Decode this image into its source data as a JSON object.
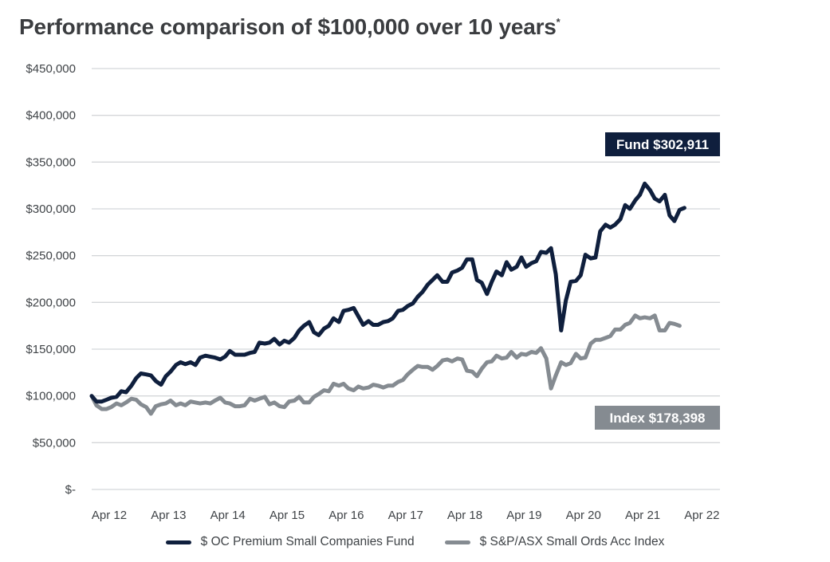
{
  "chart_data": {
    "type": "line",
    "title": "Performance comparison of $100,000 over 10 years",
    "title_marker": "*",
    "ylabel": "",
    "xlabel": "",
    "ylim": [
      0,
      450000
    ],
    "grid": true,
    "legend_position": "bottom",
    "y_ticks": [
      {
        "value": 450000,
        "label": "$450,000"
      },
      {
        "value": 400000,
        "label": "$400,000"
      },
      {
        "value": 350000,
        "label": "$350,000"
      },
      {
        "value": 300000,
        "label": "$300,000"
      },
      {
        "value": 250000,
        "label": "$250,000"
      },
      {
        "value": 200000,
        "label": "$200,000"
      },
      {
        "value": 150000,
        "label": "$150,000"
      },
      {
        "value": 100000,
        "label": "$100,000"
      },
      {
        "value": 50000,
        "label": "$50,000"
      },
      {
        "value": 0,
        "label": "$-"
      }
    ],
    "x_ticks": [
      "Apr 12",
      "Apr 13",
      "Apr 14",
      "Apr 15",
      "Apr 16",
      "Apr 17",
      "Apr 18",
      "Apr 19",
      "Apr 20",
      "Apr 21",
      "Apr 22"
    ],
    "x_range": [
      2012.0,
      2022.6
    ],
    "series": [
      {
        "name": "$ OC Premium Small Companies Fund",
        "color": "#0f1f3d",
        "callout": "Fund $302,911",
        "points": [
          [
            2012.0,
            100000
          ],
          [
            2012.08,
            94000
          ],
          [
            2012.17,
            94000
          ],
          [
            2012.25,
            96000
          ],
          [
            2012.33,
            98000
          ],
          [
            2012.42,
            99000
          ],
          [
            2012.5,
            105000
          ],
          [
            2012.58,
            104000
          ],
          [
            2012.67,
            111000
          ],
          [
            2012.75,
            119000
          ],
          [
            2012.83,
            124000
          ],
          [
            2012.92,
            123000
          ],
          [
            2013.0,
            122000
          ],
          [
            2013.08,
            116000
          ],
          [
            2013.17,
            112000
          ],
          [
            2013.25,
            121000
          ],
          [
            2013.33,
            126000
          ],
          [
            2013.42,
            133000
          ],
          [
            2013.5,
            136000
          ],
          [
            2013.58,
            134000
          ],
          [
            2013.67,
            136000
          ],
          [
            2013.75,
            133000
          ],
          [
            2013.83,
            141000
          ],
          [
            2013.92,
            143000
          ],
          [
            2014.0,
            142000
          ],
          [
            2014.08,
            141000
          ],
          [
            2014.17,
            139000
          ],
          [
            2014.25,
            142000
          ],
          [
            2014.33,
            148000
          ],
          [
            2014.42,
            144000
          ],
          [
            2014.5,
            144000
          ],
          [
            2014.58,
            144000
          ],
          [
            2014.67,
            146000
          ],
          [
            2014.75,
            147000
          ],
          [
            2014.83,
            157000
          ],
          [
            2014.92,
            156000
          ],
          [
            2015.0,
            157000
          ],
          [
            2015.08,
            161000
          ],
          [
            2015.17,
            155000
          ],
          [
            2015.25,
            159000
          ],
          [
            2015.33,
            157000
          ],
          [
            2015.42,
            162000
          ],
          [
            2015.5,
            170000
          ],
          [
            2015.58,
            175000
          ],
          [
            2015.67,
            179000
          ],
          [
            2015.75,
            168000
          ],
          [
            2015.83,
            165000
          ],
          [
            2015.92,
            172000
          ],
          [
            2016.0,
            175000
          ],
          [
            2016.08,
            183000
          ],
          [
            2016.17,
            179000
          ],
          [
            2016.25,
            191000
          ],
          [
            2016.33,
            192000
          ],
          [
            2016.42,
            194000
          ],
          [
            2016.5,
            185000
          ],
          [
            2016.58,
            176000
          ],
          [
            2016.67,
            180000
          ],
          [
            2016.75,
            176000
          ],
          [
            2016.83,
            176000
          ],
          [
            2016.92,
            179000
          ],
          [
            2017.0,
            180000
          ],
          [
            2017.08,
            183000
          ],
          [
            2017.17,
            191000
          ],
          [
            2017.25,
            192000
          ],
          [
            2017.33,
            196000
          ],
          [
            2017.42,
            199000
          ],
          [
            2017.5,
            206000
          ],
          [
            2017.58,
            211000
          ],
          [
            2017.67,
            219000
          ],
          [
            2017.75,
            224000
          ],
          [
            2017.83,
            229000
          ],
          [
            2017.92,
            222000
          ],
          [
            2018.0,
            222000
          ],
          [
            2018.08,
            232000
          ],
          [
            2018.17,
            234000
          ],
          [
            2018.25,
            237000
          ],
          [
            2018.33,
            246000
          ],
          [
            2018.42,
            246000
          ],
          [
            2018.5,
            224000
          ],
          [
            2018.58,
            221000
          ],
          [
            2018.67,
            209000
          ],
          [
            2018.75,
            222000
          ],
          [
            2018.83,
            233000
          ],
          [
            2018.92,
            229000
          ],
          [
            2019.0,
            243000
          ],
          [
            2019.08,
            235000
          ],
          [
            2019.17,
            238000
          ],
          [
            2019.25,
            248000
          ],
          [
            2019.33,
            238000
          ],
          [
            2019.42,
            242000
          ],
          [
            2019.5,
            244000
          ],
          [
            2019.58,
            254000
          ],
          [
            2019.67,
            253000
          ],
          [
            2019.75,
            258000
          ],
          [
            2019.83,
            230000
          ],
          [
            2019.92,
            170000
          ],
          [
            2020.0,
            202000
          ],
          [
            2020.08,
            222000
          ],
          [
            2020.17,
            223000
          ],
          [
            2020.25,
            229000
          ],
          [
            2020.33,
            251000
          ],
          [
            2020.42,
            247000
          ],
          [
            2020.5,
            248000
          ],
          [
            2020.58,
            276000
          ],
          [
            2020.67,
            283000
          ],
          [
            2020.75,
            280000
          ],
          [
            2020.83,
            283000
          ],
          [
            2020.92,
            289000
          ],
          [
            2021.0,
            304000
          ],
          [
            2021.08,
            300000
          ],
          [
            2021.17,
            309000
          ],
          [
            2021.25,
            315000
          ],
          [
            2021.33,
            327000
          ],
          [
            2021.42,
            320000
          ],
          [
            2021.5,
            311000
          ],
          [
            2021.58,
            308000
          ],
          [
            2021.67,
            315000
          ],
          [
            2021.75,
            293000
          ],
          [
            2021.83,
            287000
          ],
          [
            2021.92,
            299000
          ],
          [
            2022.0,
            301000
          ]
        ]
      },
      {
        "name": "$ S&P/ASX Small Ords Acc Index",
        "color": "#858b91",
        "callout": "Index $178,398",
        "points": [
          [
            2012.0,
            100000
          ],
          [
            2012.08,
            90000
          ],
          [
            2012.17,
            86000
          ],
          [
            2012.25,
            86000
          ],
          [
            2012.33,
            88000
          ],
          [
            2012.42,
            92000
          ],
          [
            2012.5,
            90000
          ],
          [
            2012.58,
            93000
          ],
          [
            2012.67,
            97000
          ],
          [
            2012.75,
            96000
          ],
          [
            2012.83,
            91000
          ],
          [
            2012.92,
            88000
          ],
          [
            2013.0,
            81000
          ],
          [
            2013.08,
            89000
          ],
          [
            2013.17,
            91000
          ],
          [
            2013.25,
            92000
          ],
          [
            2013.33,
            95000
          ],
          [
            2013.42,
            90000
          ],
          [
            2013.5,
            92000
          ],
          [
            2013.58,
            90000
          ],
          [
            2013.67,
            94000
          ],
          [
            2013.75,
            93000
          ],
          [
            2013.83,
            92000
          ],
          [
            2013.92,
            93000
          ],
          [
            2014.0,
            92000
          ],
          [
            2014.08,
            95000
          ],
          [
            2014.17,
            98000
          ],
          [
            2014.25,
            93000
          ],
          [
            2014.33,
            92000
          ],
          [
            2014.42,
            89000
          ],
          [
            2014.5,
            89000
          ],
          [
            2014.58,
            90000
          ],
          [
            2014.67,
            97000
          ],
          [
            2014.75,
            95000
          ],
          [
            2014.83,
            97000
          ],
          [
            2014.92,
            99000
          ],
          [
            2015.0,
            91000
          ],
          [
            2015.08,
            93000
          ],
          [
            2015.17,
            89000
          ],
          [
            2015.25,
            88000
          ],
          [
            2015.33,
            94000
          ],
          [
            2015.42,
            95000
          ],
          [
            2015.5,
            99000
          ],
          [
            2015.58,
            93000
          ],
          [
            2015.67,
            93000
          ],
          [
            2015.75,
            99000
          ],
          [
            2015.83,
            102000
          ],
          [
            2015.92,
            106000
          ],
          [
            2016.0,
            105000
          ],
          [
            2016.08,
            113000
          ],
          [
            2016.17,
            111000
          ],
          [
            2016.25,
            113000
          ],
          [
            2016.33,
            108000
          ],
          [
            2016.42,
            106000
          ],
          [
            2016.5,
            110000
          ],
          [
            2016.58,
            108000
          ],
          [
            2016.67,
            109000
          ],
          [
            2016.75,
            112000
          ],
          [
            2016.83,
            111000
          ],
          [
            2016.92,
            109000
          ],
          [
            2017.0,
            111000
          ],
          [
            2017.08,
            111000
          ],
          [
            2017.17,
            115000
          ],
          [
            2017.25,
            117000
          ],
          [
            2017.33,
            123000
          ],
          [
            2017.42,
            128000
          ],
          [
            2017.5,
            132000
          ],
          [
            2017.58,
            131000
          ],
          [
            2017.67,
            131000
          ],
          [
            2017.75,
            128000
          ],
          [
            2017.83,
            132000
          ],
          [
            2017.92,
            138000
          ],
          [
            2018.0,
            139000
          ],
          [
            2018.08,
            137000
          ],
          [
            2018.17,
            140000
          ],
          [
            2018.25,
            139000
          ],
          [
            2018.33,
            127000
          ],
          [
            2018.42,
            126000
          ],
          [
            2018.5,
            121000
          ],
          [
            2018.58,
            129000
          ],
          [
            2018.67,
            136000
          ],
          [
            2018.75,
            137000
          ],
          [
            2018.83,
            143000
          ],
          [
            2018.92,
            140000
          ],
          [
            2019.0,
            141000
          ],
          [
            2019.08,
            147000
          ],
          [
            2019.17,
            141000
          ],
          [
            2019.25,
            145000
          ],
          [
            2019.33,
            144000
          ],
          [
            2019.42,
            147000
          ],
          [
            2019.5,
            146000
          ],
          [
            2019.58,
            151000
          ],
          [
            2019.67,
            140000
          ],
          [
            2019.75,
            108000
          ],
          [
            2019.83,
            122000
          ],
          [
            2019.92,
            136000
          ],
          [
            2020.0,
            133000
          ],
          [
            2020.08,
            135000
          ],
          [
            2020.17,
            145000
          ],
          [
            2020.25,
            140000
          ],
          [
            2020.33,
            141000
          ],
          [
            2020.42,
            156000
          ],
          [
            2020.5,
            160000
          ],
          [
            2020.58,
            160000
          ],
          [
            2020.67,
            162000
          ],
          [
            2020.75,
            164000
          ],
          [
            2020.83,
            171000
          ],
          [
            2020.92,
            171000
          ],
          [
            2021.0,
            176000
          ],
          [
            2021.08,
            178000
          ],
          [
            2021.17,
            186000
          ],
          [
            2021.25,
            183000
          ],
          [
            2021.33,
            184000
          ],
          [
            2021.42,
            183000
          ],
          [
            2021.5,
            186000
          ],
          [
            2021.58,
            170000
          ],
          [
            2021.67,
            170000
          ],
          [
            2021.75,
            178000
          ],
          [
            2021.83,
            177000
          ],
          [
            2021.92,
            175000
          ]
        ]
      }
    ]
  }
}
